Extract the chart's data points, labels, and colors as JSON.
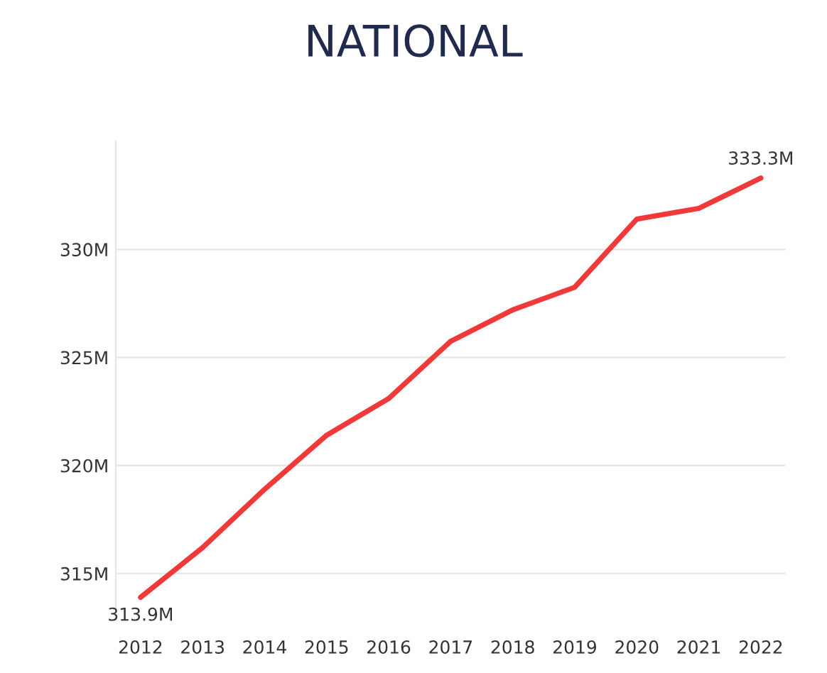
{
  "chart_data": {
    "type": "line",
    "title": "NATIONAL",
    "categories": [
      "2012",
      "2013",
      "2014",
      "2015",
      "2016",
      "2017",
      "2018",
      "2019",
      "2020",
      "2021",
      "2022"
    ],
    "series": [
      {
        "color": "#f03a3a",
        "values": [
          313.9,
          316.2,
          318.9,
          321.4,
          323.1,
          325.75,
          327.2,
          328.25,
          331.4,
          331.9,
          333.3
        ],
        "value_labels": [
          "313.9M",
          null,
          null,
          null,
          null,
          null,
          null,
          null,
          null,
          null,
          "333.3M"
        ]
      }
    ],
    "ylim": [
      313.2,
      335
    ],
    "yticks": [
      {
        "value": 315,
        "label": "315M"
      },
      {
        "value": 320,
        "label": "320M"
      },
      {
        "value": 325,
        "label": "325M"
      },
      {
        "value": 330,
        "label": "330M"
      }
    ],
    "grid": "y",
    "legend": false,
    "marker": "none",
    "line_style": "solid"
  }
}
